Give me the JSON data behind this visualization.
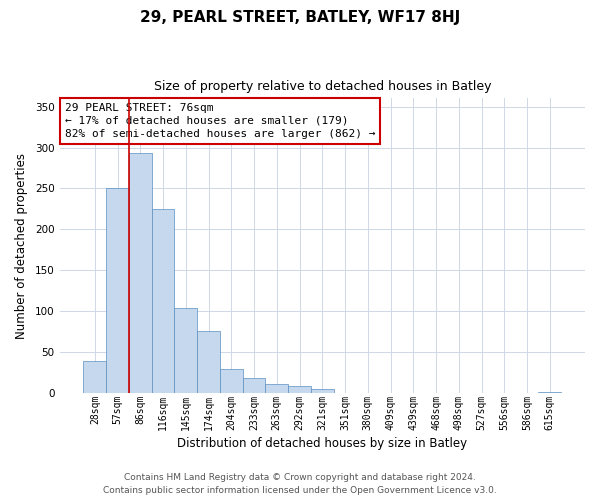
{
  "title": "29, PEARL STREET, BATLEY, WF17 8HJ",
  "subtitle": "Size of property relative to detached houses in Batley",
  "xlabel": "Distribution of detached houses by size in Batley",
  "ylabel": "Number of detached properties",
  "bar_labels": [
    "28sqm",
    "57sqm",
    "86sqm",
    "116sqm",
    "145sqm",
    "174sqm",
    "204sqm",
    "233sqm",
    "263sqm",
    "292sqm",
    "321sqm",
    "351sqm",
    "380sqm",
    "409sqm",
    "439sqm",
    "468sqm",
    "498sqm",
    "527sqm",
    "556sqm",
    "586sqm",
    "615sqm"
  ],
  "bar_values": [
    39,
    250,
    293,
    225,
    104,
    76,
    30,
    19,
    11,
    9,
    5,
    0,
    0,
    0,
    0,
    0,
    0,
    0,
    0,
    0,
    2
  ],
  "bar_color": "#c5d8ed",
  "bar_edge_color": "#5a8fc0",
  "property_line_color": "#cc0000",
  "property_line_x": 1.5,
  "ylim_max": 360,
  "yticks": [
    0,
    50,
    100,
    150,
    200,
    250,
    300,
    350
  ],
  "annotation_text": "29 PEARL STREET: 76sqm\n← 17% of detached houses are smaller (179)\n82% of semi-detached houses are larger (862) →",
  "annotation_box_facecolor": "#ffffff",
  "annotation_box_edgecolor": "#cc0000",
  "footer_text": "Contains HM Land Registry data © Crown copyright and database right 2024.\nContains public sector information licensed under the Open Government Licence v3.0.",
  "background_color": "#ffffff",
  "grid_color": "#cdd8e5",
  "title_fontsize": 11,
  "subtitle_fontsize": 9,
  "axis_label_fontsize": 8.5,
  "tick_fontsize": 7,
  "annotation_fontsize": 8,
  "footer_fontsize": 6.5
}
